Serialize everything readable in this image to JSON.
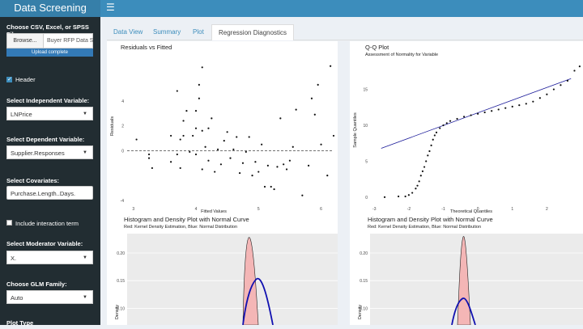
{
  "app": {
    "title": "Data Screening",
    "menu_icon": "hamburger-icon"
  },
  "sidebar": {
    "file_label": "Choose CSV, Excel, or SPSS File",
    "browse_label": "Browse...",
    "file_name": "Buyer RFP Data S",
    "upload_status": "Upload complete",
    "header_label": "Header",
    "header_checked": true,
    "independent_label": "Select Independent Variable:",
    "independent_value": "LNPrice",
    "dependent_label": "Select Dependent Variable:",
    "dependent_value": "Supplier.Responses",
    "covariates_label": "Select Covariates:",
    "covariates_value": "Purchase.Length..Days.",
    "interaction_label": "Include interaction term",
    "interaction_checked": false,
    "moderator_label": "Select Moderator Variable:",
    "moderator_value": "X.",
    "glm_label": "Choose GLM Family:",
    "glm_value": "Auto",
    "plot_type_label": "Plot Type"
  },
  "tabs": [
    {
      "label": "Data View",
      "active": false
    },
    {
      "label": "Summary",
      "active": false
    },
    {
      "label": "Plot",
      "active": false
    },
    {
      "label": "Regression Diagnostics",
      "active": true
    }
  ],
  "colors": {
    "header": "#3c8dbc",
    "brand": "#367fa9",
    "sidebar": "#222d32",
    "normal_curve": "#0000cc",
    "density_fill": "#f4b6b6"
  },
  "chart_data": [
    {
      "type": "scatter",
      "title": "Residuals vs Fitted",
      "xlabel": "Fitted Values",
      "ylabel": "Residuals",
      "xticks": [
        "3",
        "4",
        "5",
        "6"
      ],
      "yticks": [
        "4",
        "2",
        "0",
        "-4"
      ],
      "xlim": [
        2.9,
        6.2
      ],
      "ylim": [
        -4.2,
        7.5
      ],
      "reference_line": 0,
      "points": [
        [
          3.05,
          0.9
        ],
        [
          3.25,
          -0.3
        ],
        [
          3.3,
          -1.4
        ],
        [
          3.25,
          -0.6
        ],
        [
          3.6,
          1.2
        ],
        [
          3.6,
          -0.9
        ],
        [
          3.7,
          4.8
        ],
        [
          3.7,
          -0.3
        ],
        [
          3.75,
          0.9
        ],
        [
          3.75,
          -1.4
        ],
        [
          3.8,
          1.2
        ],
        [
          3.8,
          2.4
        ],
        [
          3.85,
          3.2
        ],
        [
          3.9,
          -0.1
        ],
        [
          3.95,
          1.2
        ],
        [
          4.0,
          -0.3
        ],
        [
          4.0,
          1.8
        ],
        [
          4.0,
          3.2
        ],
        [
          4.05,
          4.2
        ],
        [
          4.05,
          5.3
        ],
        [
          4.1,
          6.7
        ],
        [
          4.1,
          -1.5
        ],
        [
          4.1,
          1.6
        ],
        [
          4.15,
          0.3
        ],
        [
          4.2,
          -0.8
        ],
        [
          4.2,
          1.8
        ],
        [
          4.25,
          2.6
        ],
        [
          4.3,
          -1.7
        ],
        [
          4.35,
          0.1
        ],
        [
          4.4,
          -1.1
        ],
        [
          4.45,
          0.8
        ],
        [
          4.5,
          1.5
        ],
        [
          4.55,
          -0.6
        ],
        [
          4.6,
          0.1
        ],
        [
          4.65,
          1.1
        ],
        [
          4.7,
          -1.8
        ],
        [
          4.75,
          -1.0
        ],
        [
          4.8,
          -0.1
        ],
        [
          4.85,
          1.1
        ],
        [
          4.9,
          -2.0
        ],
        [
          4.95,
          -0.9
        ],
        [
          5.0,
          -1.7
        ],
        [
          5.05,
          0.5
        ],
        [
          5.1,
          -2.9
        ],
        [
          5.15,
          -1.2
        ],
        [
          5.2,
          -2.9
        ],
        [
          5.25,
          -3.1
        ],
        [
          5.3,
          -1.3
        ],
        [
          5.35,
          2.6
        ],
        [
          5.4,
          -1.1
        ],
        [
          5.45,
          -1.5
        ],
        [
          5.5,
          -0.8
        ],
        [
          5.55,
          0.3
        ],
        [
          5.6,
          3.3
        ],
        [
          5.7,
          -3.6
        ],
        [
          5.8,
          -1.2
        ],
        [
          5.85,
          4.2
        ],
        [
          5.9,
          2.9
        ],
        [
          5.95,
          5.3
        ],
        [
          6.0,
          0.5
        ],
        [
          6.1,
          -2.0
        ],
        [
          6.15,
          6.8
        ],
        [
          6.2,
          1.2
        ]
      ]
    },
    {
      "type": "scatter",
      "title": "Q-Q Plot",
      "subtitle": "Assessment of Normality for Variable",
      "xlabel": "Theoretical Quantiles",
      "ylabel": "Sample Quantiles",
      "xticks": [
        "-3",
        "-2",
        "-1",
        "0",
        "1",
        "2"
      ],
      "yticks": [
        "15",
        "10",
        "5",
        "0"
      ],
      "xlim": [
        -3.1,
        3.0
      ],
      "ylim": [
        -0.8,
        19
      ],
      "reference_line": [
        [
          -2.8,
          6.8
        ],
        [
          2.7,
          16.5
        ]
      ],
      "points": [
        [
          -2.7,
          0.0
        ],
        [
          -2.3,
          0.1
        ],
        [
          -2.1,
          0.1
        ],
        [
          -2.0,
          0.3
        ],
        [
          -1.9,
          0.6
        ],
        [
          -1.8,
          1.2
        ],
        [
          -1.75,
          1.6
        ],
        [
          -1.7,
          2.2
        ],
        [
          -1.65,
          3.0
        ],
        [
          -1.6,
          3.6
        ],
        [
          -1.55,
          4.2
        ],
        [
          -1.5,
          5.0
        ],
        [
          -1.45,
          5.8
        ],
        [
          -1.4,
          6.4
        ],
        [
          -1.35,
          7.2
        ],
        [
          -1.3,
          8.0
        ],
        [
          -1.25,
          8.6
        ],
        [
          -1.2,
          9.0
        ],
        [
          -1.1,
          9.6
        ],
        [
          -1.0,
          10.0
        ],
        [
          -0.9,
          10.3
        ],
        [
          -0.8,
          10.6
        ],
        [
          -0.6,
          10.9
        ],
        [
          -0.4,
          11.2
        ],
        [
          -0.2,
          11.4
        ],
        [
          0.0,
          11.6
        ],
        [
          0.2,
          11.8
        ],
        [
          0.4,
          12.0
        ],
        [
          0.6,
          12.2
        ],
        [
          0.8,
          12.4
        ],
        [
          1.0,
          12.6
        ],
        [
          1.2,
          12.8
        ],
        [
          1.4,
          13.0
        ],
        [
          1.6,
          13.3
        ],
        [
          1.8,
          13.8
        ],
        [
          2.0,
          14.3
        ],
        [
          2.2,
          15.0
        ],
        [
          2.4,
          15.6
        ],
        [
          2.6,
          16.2
        ],
        [
          2.8,
          17.6
        ],
        [
          2.95,
          18.2
        ]
      ]
    },
    {
      "type": "area",
      "title": "Histogram and Density Plot with Normal Curve",
      "subtitle": "Red: Kernel Density Estimation, Blue: Normal Distribution",
      "ylabel": "Density",
      "yticks": [
        "0.20",
        "0.15",
        "0.10"
      ],
      "ylim": [
        0.07,
        0.235
      ]
    },
    {
      "type": "area",
      "title": "Histogram and Density Plot with Normal Curve",
      "subtitle": "Red: Kernel Density Estimation, Blue: Normal Distribution",
      "ylabel": "Density",
      "yticks": [
        "0.20",
        "0.15",
        "0.10"
      ],
      "ylim": [
        0.07,
        0.235
      ]
    }
  ]
}
